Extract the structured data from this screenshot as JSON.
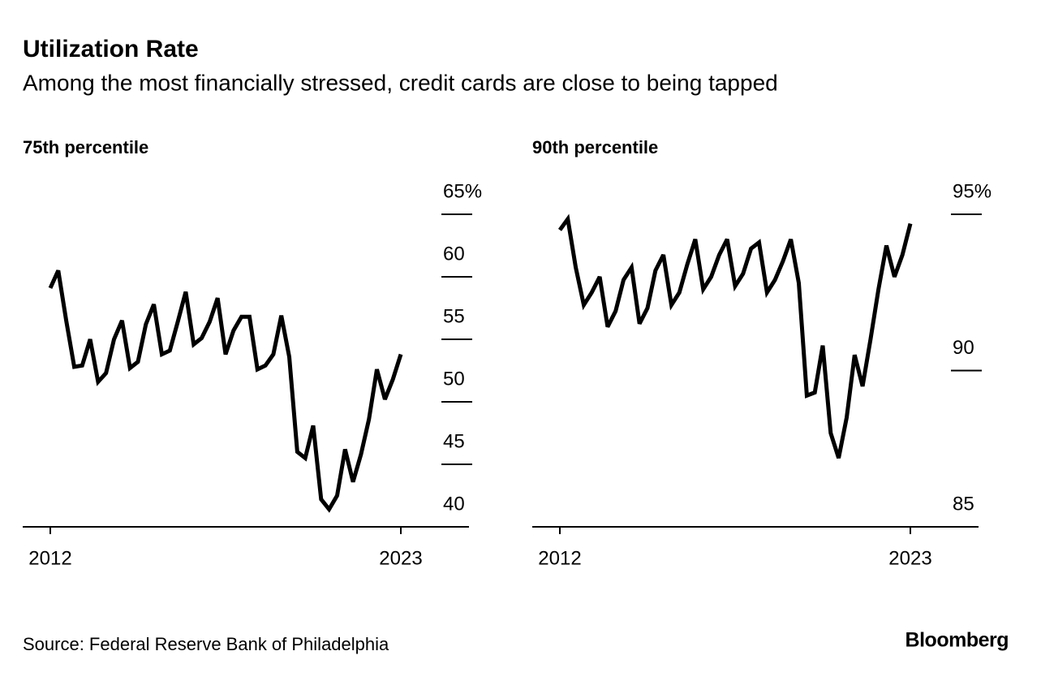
{
  "title": "Utilization Rate",
  "subtitle": "Among the most financially stressed, credit cards are close to being tapped",
  "source": "Source: Federal Reserve Bank of Philadelphia",
  "brand": "Bloomberg",
  "chart_data": [
    {
      "type": "line",
      "title": "75th percentile",
      "color": "#000000",
      "categories": [
        "2012",
        null,
        null,
        null,
        null,
        null,
        null,
        null,
        null,
        null,
        null,
        null,
        null,
        null,
        null,
        null,
        null,
        null,
        null,
        null,
        null,
        null,
        null,
        null,
        null,
        null,
        null,
        null,
        null,
        null,
        null,
        null,
        null,
        null,
        null,
        null,
        null,
        null,
        null,
        null,
        null,
        null,
        null,
        null,
        "2023"
      ],
      "values": [
        59.1,
        60.5,
        56.5,
        52.8,
        52.9,
        55.0,
        51.6,
        52.3,
        55.0,
        56.5,
        52.7,
        53.2,
        56.2,
        57.8,
        53.8,
        54.1,
        56.4,
        58.8,
        54.6,
        55.1,
        56.4,
        58.3,
        53.8,
        55.7,
        56.8,
        56.8,
        52.6,
        52.9,
        53.8,
        56.9,
        53.6,
        46.0,
        45.5,
        48.1,
        42.2,
        41.4,
        42.5,
        46.2,
        43.6,
        45.8,
        48.6,
        52.6,
        50.2,
        51.8,
        53.8
      ],
      "ylim": [
        40,
        65
      ],
      "yticks": [
        40,
        45,
        50,
        55,
        60,
        {
          "value": 65,
          "label": "65%"
        }
      ]
    },
    {
      "type": "line",
      "title": "90th percentile",
      "color": "#000000",
      "categories": [
        "2012",
        null,
        null,
        null,
        null,
        null,
        null,
        null,
        null,
        null,
        null,
        null,
        null,
        null,
        null,
        null,
        null,
        null,
        null,
        null,
        null,
        null,
        null,
        null,
        null,
        null,
        null,
        null,
        null,
        null,
        null,
        null,
        null,
        null,
        null,
        null,
        null,
        null,
        null,
        null,
        null,
        null,
        null,
        null,
        "2023"
      ],
      "values": [
        94.5,
        94.85,
        93.3,
        92.1,
        92.5,
        93.0,
        91.4,
        91.9,
        92.9,
        93.3,
        91.5,
        92.0,
        93.2,
        93.7,
        92.1,
        92.5,
        93.4,
        94.2,
        92.6,
        93.0,
        93.7,
        94.2,
        92.7,
        93.1,
        93.9,
        94.1,
        92.5,
        92.9,
        93.5,
        94.2,
        92.8,
        89.2,
        89.3,
        90.8,
        88.0,
        87.2,
        88.5,
        90.5,
        89.5,
        91.0,
        92.6,
        94.0,
        93.0,
        93.7,
        94.7
      ],
      "ylim": [
        85,
        95
      ],
      "yticks": [
        85,
        90,
        {
          "value": 95,
          "label": "95%"
        }
      ]
    }
  ]
}
